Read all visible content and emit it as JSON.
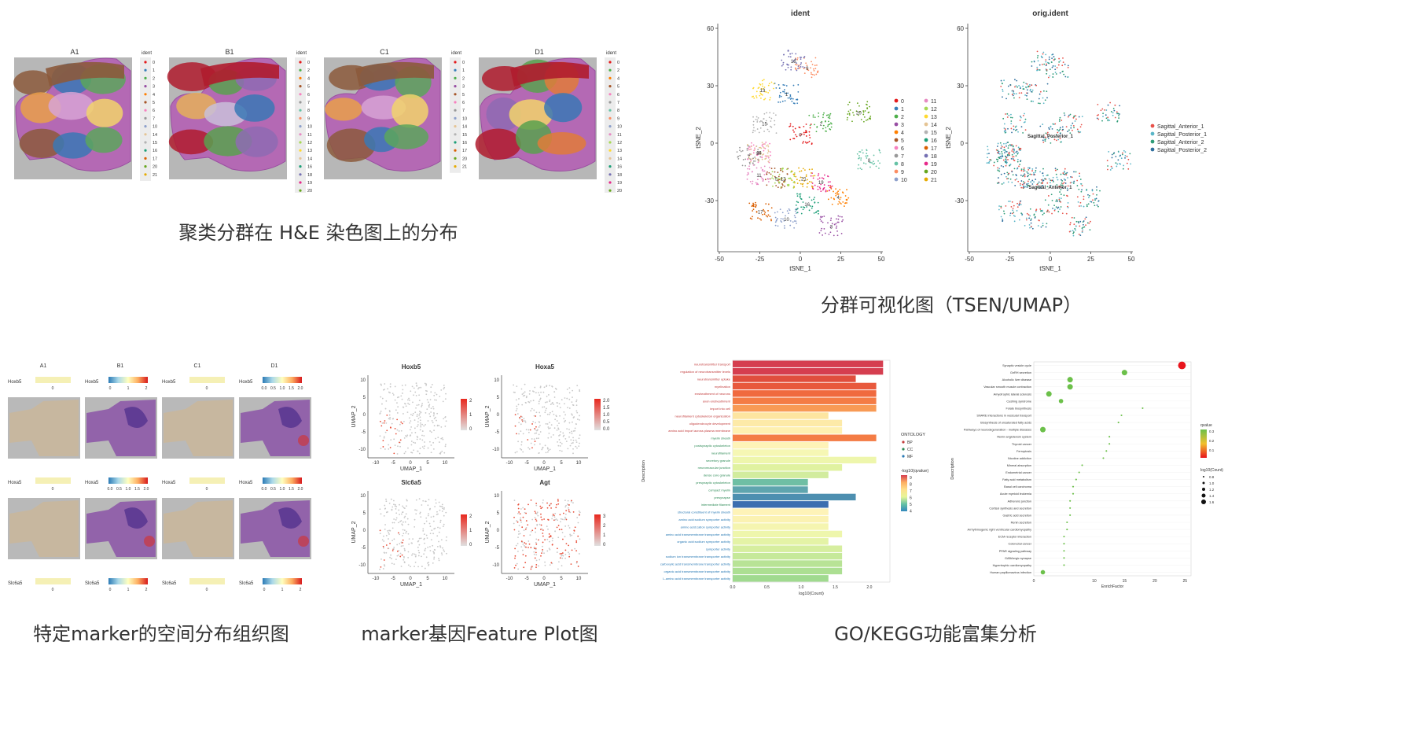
{
  "captions": {
    "he": "聚类分群在 H&E 染色图上的分布",
    "tsne": "分群可视化图（TSEN/UMAP）",
    "marker_spatial": "特定marker的空间分布组织图",
    "feature_plot": "marker基因Feature Plot图",
    "go_kegg": "GO/KEGG功能富集分析"
  },
  "he_panel": {
    "samples": [
      "A1",
      "B1",
      "C1",
      "D1"
    ],
    "legend_title": "ident",
    "legend_sets": [
      [
        "0",
        "1",
        "2",
        "3",
        "4",
        "5",
        "6",
        "7",
        "10",
        "14",
        "15",
        "16",
        "17",
        "20",
        "21"
      ],
      [
        "0",
        "2",
        "4",
        "5",
        "6",
        "7",
        "8",
        "9",
        "10",
        "11",
        "12",
        "13",
        "14",
        "16",
        "18",
        "19",
        "20"
      ],
      [
        "0",
        "1",
        "2",
        "3",
        "5",
        "6",
        "7",
        "10",
        "14",
        "15",
        "16",
        "17",
        "20",
        "21"
      ],
      [
        "0",
        "2",
        "4",
        "5",
        "6",
        "7",
        "8",
        "9",
        "10",
        "11",
        "12",
        "13",
        "14",
        "16",
        "18",
        "19",
        "20"
      ]
    ],
    "cluster_colors": [
      "#e41a1c",
      "#377eb8",
      "#4daf4a",
      "#984ea3",
      "#ff7f00",
      "#a65628",
      "#f781bf",
      "#999999",
      "#66c2a5",
      "#fc8d62",
      "#8da0cb",
      "#e78ac3",
      "#a6d854",
      "#ffd92f",
      "#e5c494",
      "#b3b3b3",
      "#1b9e77",
      "#d95f02",
      "#7570b3",
      "#e7298a",
      "#66a61e",
      "#e6ab02"
    ]
  },
  "tsne_panel": {
    "left_title": "ident",
    "right_title": "orig.ident",
    "xlabel": "tSNE_1",
    "ylabel": "tSNE_2",
    "xticks": [
      "-50",
      "-25",
      "0",
      "25",
      "50"
    ],
    "yticks": [
      "60",
      "30",
      "0",
      "-30"
    ],
    "cluster_labels": [
      "0",
      "1",
      "2",
      "3",
      "4",
      "5",
      "6",
      "7",
      "8",
      "9",
      "10",
      "11",
      "12",
      "13",
      "14",
      "15",
      "16",
      "17",
      "18",
      "19",
      "20",
      "21"
    ],
    "orig_labels": [
      "Sagittal_Anterior_1",
      "Sagittal_Posterior_1",
      "Sagittal_Anterior_2",
      "Sagittal_Posterior_2"
    ],
    "orig_colors": [
      "#e8524a",
      "#5ab6c8",
      "#2e9c77",
      "#2f6f9e"
    ],
    "cluster_overlay_text": [
      "Sagittal_Posterior_1",
      "Sagittal_Anterior_1"
    ]
  },
  "marker_spatial_panel": {
    "samples": [
      "A1",
      "B1",
      "C1",
      "D1"
    ],
    "genes": [
      "Hoxb5",
      "Hoxa5",
      "Slc6a5"
    ],
    "ticks_B1_hoxb5": [
      "0",
      "1",
      "2"
    ],
    "ticks_D1_hoxb5": [
      "0.0",
      "0.5",
      "1.0",
      "1.5",
      "2.0"
    ],
    "ticks_B1_hoxa5": [
      "0.0",
      "0.5",
      "1.0",
      "1.5",
      "2.0"
    ],
    "ticks_D1_hoxa5": [
      "0.0",
      "0.5",
      "1.0",
      "1.5",
      "2.0"
    ],
    "ticks_B1_slc6a5": [
      "0",
      "1",
      "2"
    ],
    "ticks_D1_slc6a5": [
      "0",
      "1",
      "2"
    ],
    "zero_tick": "0"
  },
  "feature_panel": {
    "genes": [
      "Hoxb5",
      "Hoxa5",
      "Slc6a5",
      "Agt"
    ],
    "xlabel": "UMAP_1",
    "ylabel": "UMAP_2",
    "xticks": [
      "-10",
      "-5",
      "0",
      "5",
      "10"
    ],
    "yticks": [
      "10",
      "5",
      "0",
      "-5",
      "-10"
    ],
    "scales": [
      [
        "2",
        "1",
        "0"
      ],
      [
        "2.0",
        "1.5",
        "1.0",
        "0.5",
        "0.0"
      ],
      [
        "2",
        "1",
        "0"
      ],
      [
        "3",
        "2",
        "1",
        "0"
      ]
    ]
  },
  "go_panel": {
    "ylabel": "Description",
    "xlabel": "log10(Count)",
    "xticks": [
      "0.0",
      "0.5",
      "1.0",
      "1.5",
      "2.0"
    ],
    "legend_ontology_title": "ONTOLOGY",
    "ontology": [
      {
        "name": "BP",
        "color": "#c23b3b"
      },
      {
        "name": "CC",
        "color": "#2e8b57"
      },
      {
        "name": "MF",
        "color": "#2a7ab5"
      }
    ],
    "qvalue_title": "-log10(qvalue)",
    "qvalue_ticks": [
      "9",
      "8",
      "7",
      "6",
      "5",
      "4"
    ],
    "terms": [
      {
        "label": "neurotransmitter transport",
        "ont": "BP",
        "value": 2.2,
        "color": "#d53e4f"
      },
      {
        "label": "regulation of neurotransmitter levels",
        "ont": "BP",
        "value": 2.2,
        "color": "#d53e4f"
      },
      {
        "label": "neurotransmitter uptake",
        "ont": "BP",
        "value": 1.8,
        "color": "#e04e3d"
      },
      {
        "label": "myelination",
        "ont": "BP",
        "value": 2.1,
        "color": "#e8593d"
      },
      {
        "label": "ensheathment of neurons",
        "ont": "BP",
        "value": 2.1,
        "color": "#f06a3f"
      },
      {
        "label": "axon ensheathment",
        "ont": "BP",
        "value": 2.1,
        "color": "#f47c45"
      },
      {
        "label": "import into cell",
        "ont": "BP",
        "value": 2.1,
        "color": "#f89a55"
      },
      {
        "label": "neurofilament cytoskeleton organization",
        "ont": "BP",
        "value": 1.4,
        "color": "#fde5a0"
      },
      {
        "label": "oligodendrocyte development",
        "ont": "BP",
        "value": 1.6,
        "color": "#fdeaa8"
      },
      {
        "label": "amino acid import across plasma membrane",
        "ont": "BP",
        "value": 1.6,
        "color": "#fef0b0"
      },
      {
        "label": "myelin sheath",
        "ont": "CC",
        "value": 2.1,
        "color": "#f47c45"
      },
      {
        "label": "postsynaptic cytoskeleton",
        "ont": "CC",
        "value": 1.4,
        "color": "#fef3b8"
      },
      {
        "label": "neurofilament",
        "ont": "CC",
        "value": 1.4,
        "color": "#f6f7b4"
      },
      {
        "label": "secretory granule",
        "ont": "CC",
        "value": 2.1,
        "color": "#eef6ac"
      },
      {
        "label": "neuromuscular junction",
        "ont": "CC",
        "value": 1.6,
        "color": "#e0f2a0"
      },
      {
        "label": "dense core granule",
        "ont": "CC",
        "value": 1.4,
        "color": "#d2ec9e"
      },
      {
        "label": "presynaptic cytoskeleton",
        "ont": "CC",
        "value": 1.1,
        "color": "#6fbfa4"
      },
      {
        "label": "compact myelin",
        "ont": "CC",
        "value": 1.1,
        "color": "#5fa5ae"
      },
      {
        "label": "presynapse",
        "ont": "CC",
        "value": 1.8,
        "color": "#4d8fb0"
      },
      {
        "label": "intermediate filament",
        "ont": "CC",
        "value": 1.4,
        "color": "#3c6fb0"
      },
      {
        "label": "structural constituent of myelin sheath",
        "ont": "MF",
        "value": 1.4,
        "color": "#fef3b8"
      },
      {
        "label": "amino acid:sodium symporter activity",
        "ont": "MF",
        "value": 1.4,
        "color": "#fbf2b2"
      },
      {
        "label": "amino acid:cation symporter activity",
        "ont": "MF",
        "value": 1.4,
        "color": "#f5f5b0"
      },
      {
        "label": "amino acid transmembrane transporter activity",
        "ont": "MF",
        "value": 1.6,
        "color": "#eef6ac"
      },
      {
        "label": "organic acid:sodium symporter activity",
        "ont": "MF",
        "value": 1.4,
        "color": "#e4f3a6"
      },
      {
        "label": "symporter activity",
        "ont": "MF",
        "value": 1.6,
        "color": "#d6ee9f"
      },
      {
        "label": "sodium ion transmembrane transporter activity",
        "ont": "MF",
        "value": 1.6,
        "color": "#c6e99a"
      },
      {
        "label": "carboxylic acid transmembrane transporter activity",
        "ont": "MF",
        "value": 1.6,
        "color": "#b8e396"
      },
      {
        "label": "organic acid transmembrane transporter activity",
        "ont": "MF",
        "value": 1.6,
        "color": "#acdf92"
      },
      {
        "label": "L-amino acid transmembrane transporter activity",
        "ont": "MF",
        "value": 1.4,
        "color": "#a0da8f"
      }
    ]
  },
  "kegg_panel": {
    "ylabel": "Description",
    "xlabel": "EnrichFactor",
    "xticks": [
      "0",
      "10",
      "15",
      "20",
      "25"
    ],
    "qvalue_title": "qvalue",
    "qvalue_ticks": [
      "0.3",
      "0.2",
      "0.1"
    ],
    "count_title": "log10(Count)",
    "count_ticks": [
      "0.8",
      "1.0",
      "1.2",
      "1.4",
      "1.6"
    ],
    "terms": [
      {
        "label": "Synaptic vesicle cycle",
        "ef": 24.5,
        "size": 7,
        "color": "#e8141c"
      },
      {
        "label": "GnRH secretion",
        "ef": 15,
        "size": 5,
        "color": "#6cc04a"
      },
      {
        "label": "Alcoholic liver disease",
        "ef": 6,
        "size": 5,
        "color": "#6cc04a"
      },
      {
        "label": "Vascular smooth muscle contraction",
        "ef": 6,
        "size": 5,
        "color": "#6cc04a"
      },
      {
        "label": "Amyotrophic lateral sclerosis",
        "ef": 2.5,
        "size": 5,
        "color": "#6cc04a"
      },
      {
        "label": "Cushing syndrome",
        "ef": 4.5,
        "size": 4,
        "color": "#6cc04a"
      },
      {
        "label": "Folate biosynthesis",
        "ef": 18,
        "size": 1.5,
        "color": "#6cc04a"
      },
      {
        "label": "SNARE interactions in vesicular transport",
        "ef": 14.5,
        "size": 1.5,
        "color": "#6cc04a"
      },
      {
        "label": "Biosynthesis of unsaturated fatty acids",
        "ef": 14,
        "size": 1.5,
        "color": "#6cc04a"
      },
      {
        "label": "Pathways of neurodegeneration - multiple diseases",
        "ef": 1.5,
        "size": 5,
        "color": "#6cc04a"
      },
      {
        "label": "Renin-angiotensin system",
        "ef": 12.5,
        "size": 1.5,
        "color": "#6cc04a"
      },
      {
        "label": "Thyroid cancer",
        "ef": 12.5,
        "size": 1.5,
        "color": "#6cc04a"
      },
      {
        "label": "Ferroptosis",
        "ef": 12,
        "size": 1.5,
        "color": "#6cc04a"
      },
      {
        "label": "Nicotine addiction",
        "ef": 11.5,
        "size": 1.5,
        "color": "#6cc04a"
      },
      {
        "label": "Mineral absorption",
        "ef": 8,
        "size": 1.5,
        "color": "#6cc04a"
      },
      {
        "label": "Endometrial cancer",
        "ef": 7.5,
        "size": 1.5,
        "color": "#6cc04a"
      },
      {
        "label": "Fatty acid metabolism",
        "ef": 7,
        "size": 1.5,
        "color": "#6cc04a"
      },
      {
        "label": "Basal cell carcinoma",
        "ef": 6.5,
        "size": 1.5,
        "color": "#6cc04a"
      },
      {
        "label": "Acute myeloid leukemia",
        "ef": 6.5,
        "size": 1.5,
        "color": "#6cc04a"
      },
      {
        "label": "Adherens junction",
        "ef": 6,
        "size": 1.5,
        "color": "#6cc04a"
      },
      {
        "label": "Cortisol synthesis and secretion",
        "ef": 6,
        "size": 1.5,
        "color": "#6cc04a"
      },
      {
        "label": "Gastric acid secretion",
        "ef": 6,
        "size": 1.5,
        "color": "#6cc04a"
      },
      {
        "label": "Renin secretion",
        "ef": 5.5,
        "size": 1.5,
        "color": "#6cc04a"
      },
      {
        "label": "Arrhythmogenic right ventricular cardiomyopathy",
        "ef": 5.5,
        "size": 1.5,
        "color": "#6cc04a"
      },
      {
        "label": "ECM-receptor interaction",
        "ef": 5,
        "size": 1.5,
        "color": "#6cc04a"
      },
      {
        "label": "Colorectal cancer",
        "ef": 5,
        "size": 1.5,
        "color": "#6cc04a"
      },
      {
        "label": "PPAR signaling pathway",
        "ef": 5,
        "size": 1.5,
        "color": "#6cc04a"
      },
      {
        "label": "GABAergic synapse",
        "ef": 5,
        "size": 1.5,
        "color": "#6cc04a"
      },
      {
        "label": "Hypertrophic cardiomyopathy",
        "ef": 5,
        "size": 1.5,
        "color": "#6cc04a"
      },
      {
        "label": "Human papillomavirus infection",
        "ef": 1.5,
        "size": 4,
        "color": "#6cc04a"
      }
    ]
  }
}
